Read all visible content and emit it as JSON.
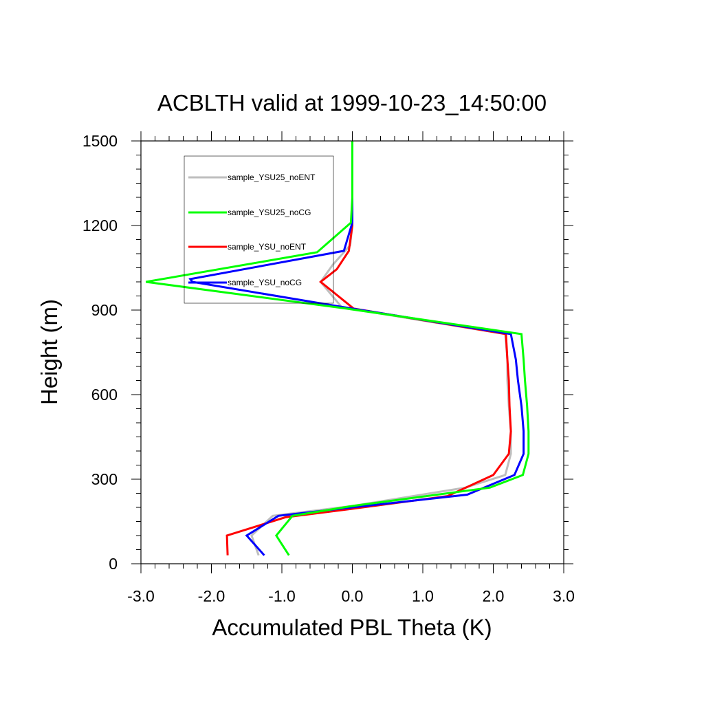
{
  "chart_data": {
    "type": "line",
    "title": "ACBLTH valid at 1999-10-23_14:50:00",
    "xlabel": "Accumulated PBL Theta (K)",
    "ylabel": "Height (m)",
    "xlim": [
      -3.0,
      3.0
    ],
    "ylim": [
      0,
      1500
    ],
    "x_ticks": [
      -3.0,
      -2.0,
      -1.0,
      0.0,
      1.0,
      2.0,
      3.0
    ],
    "x_tick_labels": [
      "-3.0",
      "-2.0",
      "-1.0",
      "0.0",
      "1.0",
      "2.0",
      "3.0"
    ],
    "y_ticks": [
      0,
      300,
      600,
      900,
      1200,
      1500
    ],
    "y_tick_labels": [
      "0",
      "300",
      "600",
      "900",
      "1200",
      "1500"
    ],
    "grid": false,
    "legend_position": "top-left",
    "series": [
      {
        "name": "sample_YSU25_noENT",
        "color": "#bebebe",
        "points": [
          [
            -1.33,
            30
          ],
          [
            -1.43,
            100
          ],
          [
            -1.13,
            170
          ],
          [
            0.0,
            205
          ],
          [
            1.6,
            270
          ],
          [
            2.17,
            315
          ],
          [
            2.25,
            390
          ],
          [
            2.25,
            470
          ],
          [
            2.22,
            560
          ],
          [
            2.2,
            650
          ],
          [
            2.2,
            725
          ],
          [
            2.17,
            815
          ],
          [
            -0.15,
            910
          ],
          [
            -0.45,
            1000
          ],
          [
            -0.28,
            1060
          ],
          [
            -0.03,
            1130
          ],
          [
            0.0,
            1200
          ],
          [
            0.0,
            1300
          ],
          [
            0.0,
            1500
          ]
        ]
      },
      {
        "name": "sample_YSU25_noCG",
        "color": "#00ff00",
        "points": [
          [
            -0.9,
            30
          ],
          [
            -1.08,
            100
          ],
          [
            -0.85,
            170
          ],
          [
            0.0,
            205
          ],
          [
            1.95,
            270
          ],
          [
            2.42,
            315
          ],
          [
            2.5,
            390
          ],
          [
            2.5,
            470
          ],
          [
            2.48,
            560
          ],
          [
            2.45,
            650
          ],
          [
            2.43,
            725
          ],
          [
            2.4,
            815
          ],
          [
            -0.08,
            905
          ],
          [
            -2.93,
            1000
          ],
          [
            -0.5,
            1105
          ],
          [
            -0.02,
            1210
          ],
          [
            0.0,
            1300
          ],
          [
            0.0,
            1500
          ]
        ]
      },
      {
        "name": "sample_YSU_noENT",
        "color": "#ff0000",
        "points": [
          [
            -1.77,
            30
          ],
          [
            -1.78,
            100
          ],
          [
            -0.95,
            165
          ],
          [
            0.0,
            195
          ],
          [
            1.35,
            240
          ],
          [
            2.0,
            315
          ],
          [
            2.22,
            390
          ],
          [
            2.25,
            470
          ],
          [
            2.23,
            560
          ],
          [
            2.22,
            650
          ],
          [
            2.2,
            725
          ],
          [
            2.18,
            815
          ],
          [
            0.02,
            905
          ],
          [
            -0.45,
            1000
          ],
          [
            -0.22,
            1045
          ],
          [
            -0.05,
            1110
          ],
          [
            0.0,
            1200
          ],
          [
            0.0,
            1300
          ],
          [
            0.0,
            1500
          ]
        ]
      },
      {
        "name": "sample_YSU_noCG",
        "color": "#0000ff",
        "points": [
          [
            -1.25,
            30
          ],
          [
            -1.5,
            100
          ],
          [
            -1.05,
            170
          ],
          [
            0.0,
            200
          ],
          [
            1.63,
            245
          ],
          [
            2.3,
            315
          ],
          [
            2.43,
            390
          ],
          [
            2.43,
            470
          ],
          [
            2.4,
            560
          ],
          [
            2.35,
            650
          ],
          [
            2.32,
            725
          ],
          [
            2.25,
            815
          ],
          [
            -0.12,
            910
          ],
          [
            -2.27,
            1000
          ],
          [
            -2.3,
            1010
          ],
          [
            -0.12,
            1110
          ],
          [
            0.0,
            1210
          ],
          [
            0.0,
            1300
          ],
          [
            0.0,
            1500
          ]
        ]
      }
    ]
  }
}
